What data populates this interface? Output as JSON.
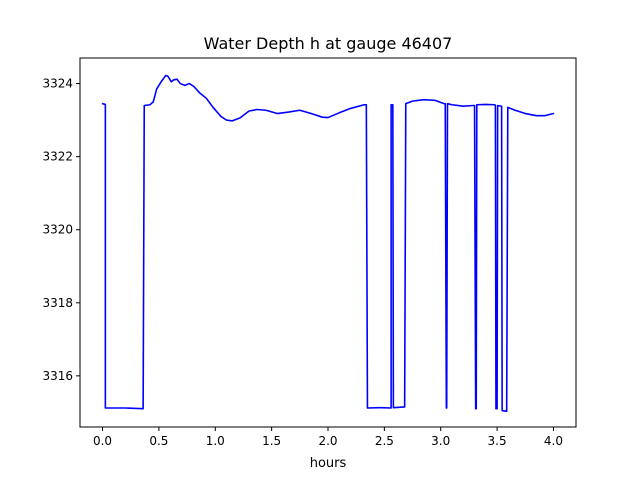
{
  "chart_data": {
    "type": "line",
    "title": "Water Depth h at gauge 46407",
    "xlabel": "hours",
    "ylabel": "",
    "xlim": [
      -0.2,
      4.2
    ],
    "ylim": [
      3314.6,
      3324.7
    ],
    "xticks": [
      0.0,
      0.5,
      1.0,
      1.5,
      2.0,
      2.5,
      3.0,
      3.5,
      4.0
    ],
    "xtick_labels": [
      "0.0",
      "0.5",
      "1.0",
      "1.5",
      "2.0",
      "2.5",
      "3.0",
      "3.5",
      "4.0"
    ],
    "yticks": [
      3316,
      3318,
      3320,
      3322,
      3324
    ],
    "ytick_labels": [
      "3316",
      "3318",
      "3320",
      "3322",
      "3324"
    ],
    "grid": false,
    "series": [
      {
        "color": "#0000ff",
        "points": [
          [
            0.0,
            3323.45
          ],
          [
            0.025,
            3323.43
          ],
          [
            0.025,
            3315.12
          ],
          [
            0.2,
            3315.12
          ],
          [
            0.36,
            3315.1
          ],
          [
            0.37,
            3323.4
          ],
          [
            0.42,
            3323.42
          ],
          [
            0.45,
            3323.5
          ],
          [
            0.48,
            3323.85
          ],
          [
            0.52,
            3324.05
          ],
          [
            0.56,
            3324.22
          ],
          [
            0.58,
            3324.2
          ],
          [
            0.61,
            3324.05
          ],
          [
            0.63,
            3324.1
          ],
          [
            0.66,
            3324.12
          ],
          [
            0.69,
            3324.0
          ],
          [
            0.73,
            3323.95
          ],
          [
            0.77,
            3324.0
          ],
          [
            0.81,
            3323.92
          ],
          [
            0.86,
            3323.75
          ],
          [
            0.92,
            3323.6
          ],
          [
            0.98,
            3323.35
          ],
          [
            1.05,
            3323.1
          ],
          [
            1.1,
            3323.0
          ],
          [
            1.15,
            3322.98
          ],
          [
            1.22,
            3323.06
          ],
          [
            1.3,
            3323.25
          ],
          [
            1.37,
            3323.29
          ],
          [
            1.45,
            3323.27
          ],
          [
            1.55,
            3323.18
          ],
          [
            1.65,
            3323.22
          ],
          [
            1.75,
            3323.27
          ],
          [
            1.85,
            3323.18
          ],
          [
            1.95,
            3323.08
          ],
          [
            2.0,
            3323.07
          ],
          [
            2.1,
            3323.2
          ],
          [
            2.2,
            3323.32
          ],
          [
            2.32,
            3323.42
          ],
          [
            2.34,
            3323.42
          ],
          [
            2.35,
            3315.12
          ],
          [
            2.45,
            3315.13
          ],
          [
            2.56,
            3315.12
          ],
          [
            2.56,
            3323.42
          ],
          [
            2.575,
            3323.42
          ],
          [
            2.58,
            3315.13
          ],
          [
            2.68,
            3315.15
          ],
          [
            2.69,
            3323.45
          ],
          [
            2.75,
            3323.52
          ],
          [
            2.85,
            3323.56
          ],
          [
            2.95,
            3323.54
          ],
          [
            3.03,
            3323.45
          ],
          [
            3.04,
            3323.45
          ],
          [
            3.05,
            3315.12
          ],
          [
            3.053,
            3315.12
          ],
          [
            3.06,
            3323.45
          ],
          [
            3.1,
            3323.42
          ],
          [
            3.2,
            3323.38
          ],
          [
            3.29,
            3323.4
          ],
          [
            3.3,
            3323.4
          ],
          [
            3.31,
            3315.1
          ],
          [
            3.315,
            3315.1
          ],
          [
            3.32,
            3323.42
          ],
          [
            3.4,
            3323.43
          ],
          [
            3.48,
            3323.42
          ],
          [
            3.485,
            3323.4
          ],
          [
            3.49,
            3315.1
          ],
          [
            3.5,
            3315.1
          ],
          [
            3.505,
            3323.4
          ],
          [
            3.54,
            3323.38
          ],
          [
            3.545,
            3315.05
          ],
          [
            3.585,
            3315.03
          ],
          [
            3.595,
            3323.35
          ],
          [
            3.65,
            3323.28
          ],
          [
            3.75,
            3323.18
          ],
          [
            3.85,
            3323.12
          ],
          [
            3.92,
            3323.12
          ],
          [
            4.0,
            3323.18
          ]
        ]
      }
    ]
  }
}
